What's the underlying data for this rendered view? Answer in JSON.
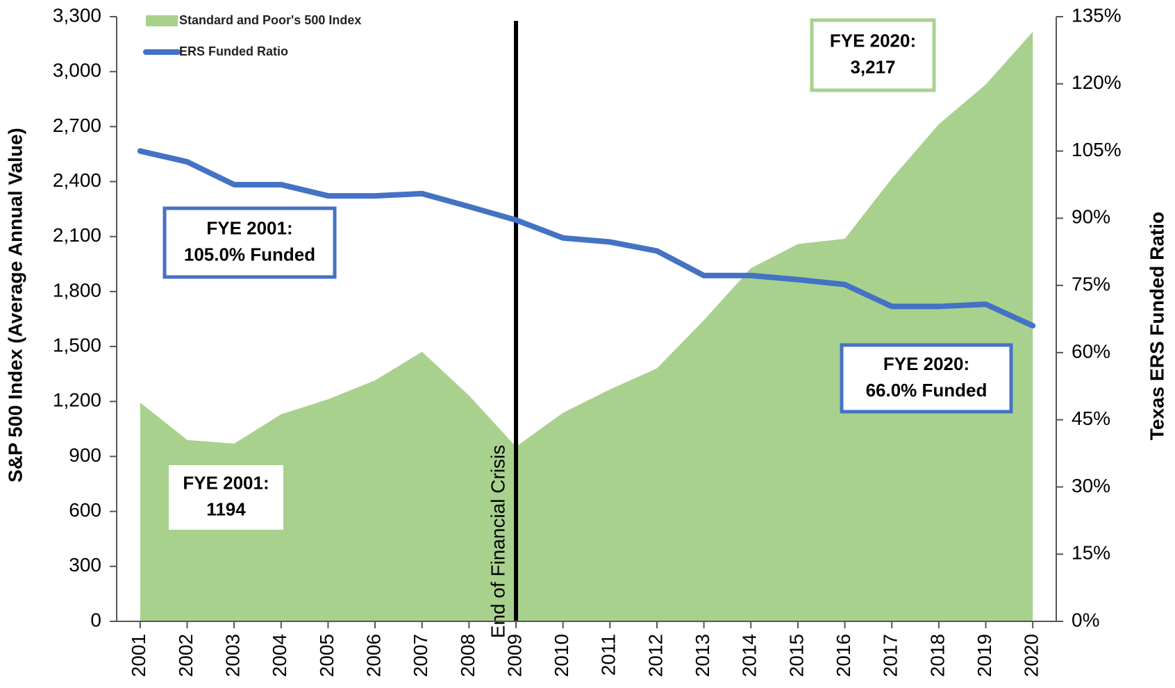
{
  "chart_data": {
    "type": "area-line",
    "categories": [
      "2001",
      "2002",
      "2003",
      "2004",
      "2005",
      "2006",
      "2007",
      "2008",
      "2009",
      "2010",
      "2011",
      "2012",
      "2013",
      "2014",
      "2015",
      "2016",
      "2017",
      "2018",
      "2019",
      "2020"
    ],
    "series": [
      {
        "name": "Standard and Poor's 500 Index",
        "type": "area",
        "color": "#a9d18e",
        "values": [
          1194,
          990,
          970,
          1130,
          1212,
          1315,
          1471,
          1233,
          953,
          1138,
          1266,
          1381,
          1644,
          1927,
          2059,
          2088,
          2417,
          2713,
          2930,
          3217
        ]
      },
      {
        "name": "ERS Funded Ratio",
        "type": "line",
        "color": "#4472c4",
        "axis": "y2",
        "values": [
          105.0,
          102.6,
          97.5,
          97.5,
          95.0,
          95.0,
          95.5,
          92.6,
          89.6,
          85.6,
          84.7,
          82.7,
          77.2,
          77.2,
          76.3,
          75.2,
          70.3,
          70.3,
          70.8,
          66.0
        ]
      }
    ],
    "y_label": "S&P 500 Index (Average Annual Value)",
    "y2_label": "Texas ERS Funded Ratio",
    "ylim": [
      0,
      3300
    ],
    "yticks": [
      0,
      300,
      600,
      900,
      {
        "value": 1200,
        "label": "1,200"
      },
      {
        "value": 1500,
        "label": "1,500"
      },
      {
        "value": 1800,
        "label": "1,800"
      },
      {
        "value": 2100,
        "label": "2,100"
      },
      {
        "value": 2400,
        "label": "2,400"
      },
      {
        "value": 2700,
        "label": "2,700"
      },
      {
        "value": 3000,
        "label": "3,000"
      },
      {
        "value": 3300,
        "label": "3,300"
      }
    ],
    "y2lim": [
      0,
      135
    ],
    "y2ticks": [
      {
        "value": 0,
        "label": "0%"
      },
      {
        "value": 15,
        "label": "15%"
      },
      {
        "value": 30,
        "label": "30%"
      },
      {
        "value": 45,
        "label": "45%"
      },
      {
        "value": 60,
        "label": "60%"
      },
      {
        "value": 75,
        "label": "75%"
      },
      {
        "value": 90,
        "label": "90%"
      },
      {
        "value": 105,
        "label": "105%"
      },
      {
        "value": 120,
        "label": "120%"
      },
      {
        "value": 135,
        "label": "135%"
      }
    ],
    "vline": {
      "x": "2009",
      "label": "End of Financial Crisis"
    },
    "annotations": [
      {
        "lines": [
          "FYE 2020:",
          "3,217"
        ]
      },
      {
        "lines": [
          "FYE 2001:",
          "105.0% Funded"
        ]
      },
      {
        "lines": [
          "FYE 2020:",
          "66.0% Funded"
        ]
      },
      {
        "lines": [
          "FYE 2001:",
          "1194"
        ]
      }
    ]
  }
}
